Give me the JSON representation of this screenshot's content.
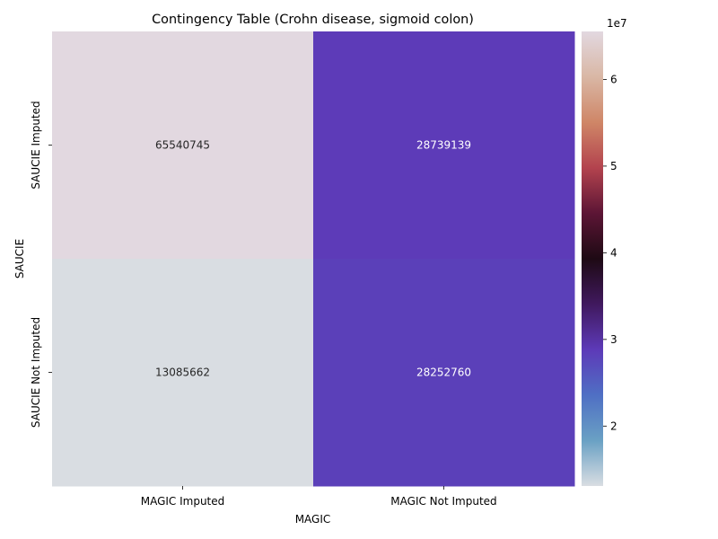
{
  "chart_data": {
    "type": "heatmap",
    "title": "Contingency Table (Crohn disease, sigmoid colon)",
    "xlabel": "MAGIC",
    "ylabel": "SAUCIE",
    "x_categories": [
      "MAGIC Imputed",
      "MAGIC Not Imputed"
    ],
    "y_categories": [
      "SAUCIE Imputed",
      "SAUCIE Not Imputed"
    ],
    "values": [
      [
        65540745,
        28739139
      ],
      [
        13085662,
        28252760
      ]
    ],
    "colorbar": {
      "range": [
        13085662,
        65540745
      ],
      "ticks": [
        2,
        3,
        4,
        5,
        6
      ],
      "multiplier": "1e7",
      "colormap": "twilight-like",
      "stops": [
        "#d9dde2",
        "#6aa1c4",
        "#4f6fc4",
        "#5d3ab8",
        "#40195e",
        "#1e0a14",
        "#5c1535",
        "#b3434e",
        "#cf8667",
        "#d9b7a5",
        "#e2d8e0"
      ]
    }
  }
}
